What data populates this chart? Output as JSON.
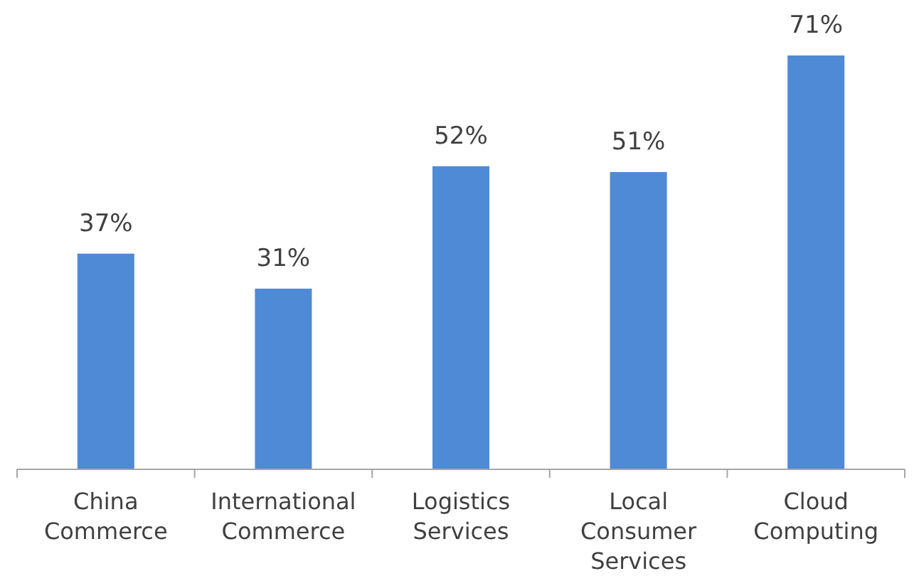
{
  "chart_data": {
    "type": "bar",
    "categories": [
      "China Commerce",
      "International Commerce",
      "Logistics Services",
      "Local Consumer Services",
      "Cloud Computing"
    ],
    "values": [
      37,
      31,
      52,
      51,
      71
    ],
    "value_labels": [
      "37%",
      "31%",
      "52%",
      "51%",
      "71%"
    ],
    "color": "#4f8ad6"
  }
}
